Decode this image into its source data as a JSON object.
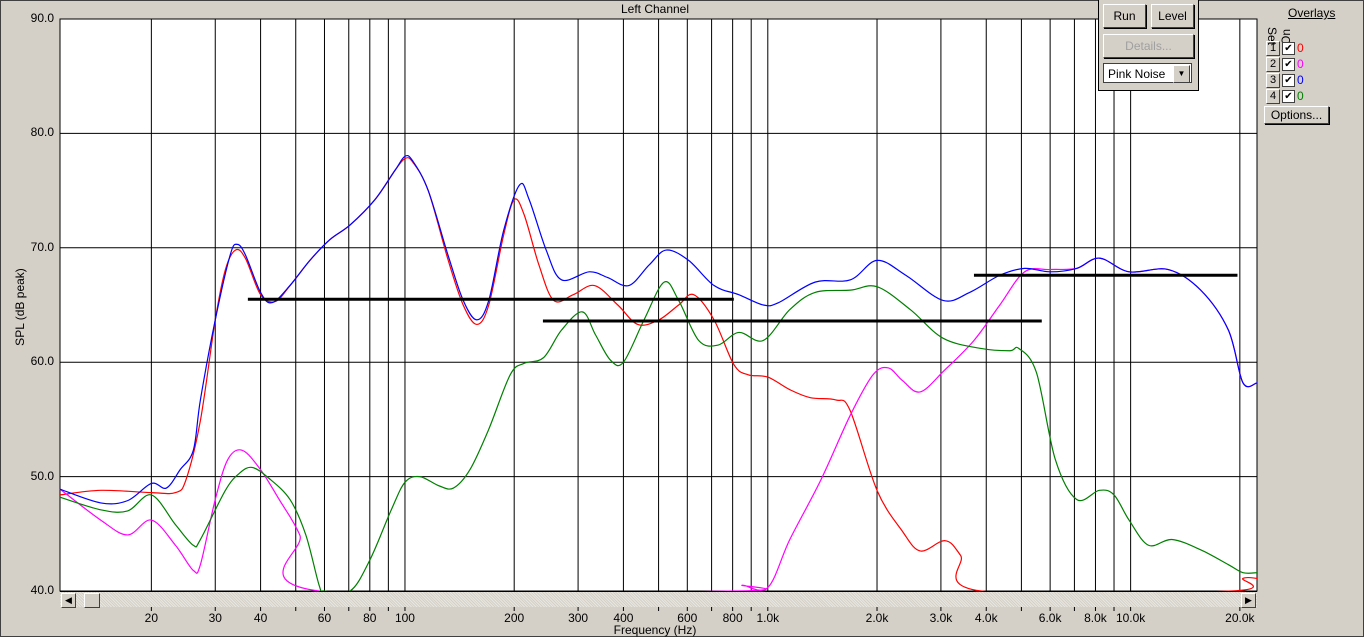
{
  "chart_data": {
    "type": "line",
    "title": "Left Channel",
    "xlabel": "Frequency (Hz)",
    "ylabel": "SPL (dB peak)",
    "xscale": "log",
    "xlim": [
      11.2,
      22300
    ],
    "ylim": [
      40,
      90
    ],
    "grid": true,
    "x_ticks": [
      {
        "v": 20,
        "l": "20"
      },
      {
        "v": 30,
        "l": "30"
      },
      {
        "v": 40,
        "l": "40"
      },
      {
        "v": 60,
        "l": "60"
      },
      {
        "v": 80,
        "l": "80"
      },
      {
        "v": 100,
        "l": "100"
      },
      {
        "v": 200,
        "l": "200"
      },
      {
        "v": 300,
        "l": "300"
      },
      {
        "v": 400,
        "l": "400"
      },
      {
        "v": 600,
        "l": "600"
      },
      {
        "v": 800,
        "l": "800"
      },
      {
        "v": 1000,
        "l": "1.0k"
      },
      {
        "v": 2000,
        "l": "2.0k"
      },
      {
        "v": 3000,
        "l": "3.0k"
      },
      {
        "v": 4000,
        "l": "4.0k"
      },
      {
        "v": 6000,
        "l": "6.0k"
      },
      {
        "v": 8000,
        "l": "8.0k"
      },
      {
        "v": 10000,
        "l": "10.0k"
      },
      {
        "v": 20000,
        "l": "20.0k"
      }
    ],
    "x_grid": [
      20,
      30,
      40,
      50,
      60,
      70,
      80,
      90,
      100,
      200,
      300,
      400,
      500,
      600,
      700,
      800,
      900,
      1000,
      2000,
      3000,
      4000,
      5000,
      6000,
      7000,
      8000,
      9000,
      10000,
      20000
    ],
    "y_ticks": [
      {
        "v": 40,
        "l": "40.0"
      },
      {
        "v": 50,
        "l": "50.0"
      },
      {
        "v": 60,
        "l": "60.0"
      },
      {
        "v": 70,
        "l": "70.0"
      },
      {
        "v": 80,
        "l": "80.0"
      },
      {
        "v": 90,
        "l": "90.0"
      }
    ],
    "series": [
      {
        "color": "#ff0000",
        "points": [
          [
            11.2,
            48.4
          ],
          [
            14.5,
            48.8
          ],
          [
            20,
            48.6
          ],
          [
            23.3,
            48.6
          ],
          [
            24.9,
            49.7
          ],
          [
            27.3,
            54.9
          ],
          [
            30,
            63.7
          ],
          [
            32,
            68.1
          ],
          [
            34.1,
            69.8
          ],
          [
            36.3,
            69.1
          ],
          [
            40,
            65.9
          ],
          [
            43.9,
            65.3
          ],
          [
            48.2,
            66.7
          ],
          [
            54.7,
            68.9
          ],
          [
            62,
            70.7
          ],
          [
            70.6,
            72
          ],
          [
            82.6,
            74.2
          ],
          [
            94,
            76.8
          ],
          [
            100,
            77.8
          ],
          [
            105,
            77.5
          ],
          [
            115.9,
            75
          ],
          [
            131.6,
            68.9
          ],
          [
            144.7,
            65
          ],
          [
            157.7,
            63.3
          ],
          [
            170.2,
            65
          ],
          [
            187,
            71.1
          ],
          [
            200,
            74.2
          ],
          [
            213,
            72.9
          ],
          [
            234,
            68.5
          ],
          [
            257,
            65.4
          ],
          [
            291,
            65.9
          ],
          [
            333,
            66.7
          ],
          [
            386,
            65
          ],
          [
            438,
            63.3
          ],
          [
            501,
            63.7
          ],
          [
            568,
            65
          ],
          [
            625,
            65.9
          ],
          [
            711,
            63.7
          ],
          [
            806,
            59.8
          ],
          [
            883,
            58.9
          ],
          [
            1000,
            58.7
          ],
          [
            1150,
            57.6
          ],
          [
            1310,
            56.9
          ],
          [
            1540,
            56.7
          ],
          [
            1685,
            55.8
          ],
          [
            2000,
            48.8
          ],
          [
            2340,
            45.3
          ],
          [
            2630,
            43.5
          ],
          [
            3080,
            44.4
          ],
          [
            3400,
            43.1
          ],
          [
            3870,
            40
          ],
          [
            19000,
            40
          ],
          [
            20400,
            41.1
          ],
          [
            22300,
            41.1
          ]
        ]
      },
      {
        "color": "#ff00ff",
        "points": [
          [
            11.2,
            48.9
          ],
          [
            14.5,
            46.2
          ],
          [
            17.2,
            44.9
          ],
          [
            20,
            46.2
          ],
          [
            23.3,
            44
          ],
          [
            26.1,
            41.8
          ],
          [
            27.3,
            42.3
          ],
          [
            30,
            48
          ],
          [
            32.5,
            51.5
          ],
          [
            35.6,
            52.3
          ],
          [
            40,
            50.6
          ],
          [
            45,
            48
          ],
          [
            51.3,
            44.9
          ],
          [
            58,
            40
          ],
          [
            806,
            40
          ],
          [
            850,
            40.5
          ],
          [
            1000,
            40.3
          ],
          [
            1150,
            44.5
          ],
          [
            1400,
            49.7
          ],
          [
            1690,
            55.4
          ],
          [
            1950,
            58.9
          ],
          [
            2150,
            59.5
          ],
          [
            2350,
            58.4
          ],
          [
            2630,
            57.4
          ],
          [
            3070,
            59.3
          ],
          [
            3700,
            61.9
          ],
          [
            4360,
            65
          ],
          [
            5100,
            67.9
          ],
          [
            6000,
            68.1
          ],
          [
            7100,
            68.2
          ],
          [
            8200,
            69.1
          ],
          [
            9900,
            67.9
          ],
          [
            12700,
            68.1
          ],
          [
            15600,
            66.3
          ],
          [
            18600,
            62.8
          ],
          [
            20400,
            58.2
          ],
          [
            22300,
            58.2
          ]
        ]
      },
      {
        "color": "#0000ff",
        "points": [
          [
            11.2,
            48.9
          ],
          [
            14.5,
            47.7
          ],
          [
            17.2,
            47.9
          ],
          [
            20,
            49.4
          ],
          [
            22,
            49
          ],
          [
            24,
            50.6
          ],
          [
            26.1,
            52.3
          ],
          [
            27.3,
            56.7
          ],
          [
            30,
            63.7
          ],
          [
            33,
            69.4
          ],
          [
            34.5,
            70.3
          ],
          [
            36.3,
            69.4
          ],
          [
            40,
            66.1
          ],
          [
            43,
            65.2
          ],
          [
            48.2,
            66.7
          ],
          [
            54.7,
            68.9
          ],
          [
            62,
            70.7
          ],
          [
            70.6,
            72
          ],
          [
            82.6,
            74.2
          ],
          [
            94,
            76.8
          ],
          [
            100,
            78
          ],
          [
            105,
            77.6
          ],
          [
            115.9,
            75
          ],
          [
            131.6,
            69.3
          ],
          [
            144.7,
            65.4
          ],
          [
            157.7,
            63.7
          ],
          [
            170.2,
            65.4
          ],
          [
            187,
            71.5
          ],
          [
            207,
            75.5
          ],
          [
            220,
            74.2
          ],
          [
            245,
            69.8
          ],
          [
            270,
            67.2
          ],
          [
            322,
            67.9
          ],
          [
            362,
            67.4
          ],
          [
            414,
            66.7
          ],
          [
            471,
            68.5
          ],
          [
            525,
            69.8
          ],
          [
            605,
            68.9
          ],
          [
            711,
            66.7
          ],
          [
            832,
            65.9
          ],
          [
            972,
            65
          ],
          [
            1070,
            65.2
          ],
          [
            1350,
            67
          ],
          [
            1690,
            67.2
          ],
          [
            2000,
            68.9
          ],
          [
            2400,
            67.6
          ],
          [
            3040,
            65.4
          ],
          [
            3600,
            66.1
          ],
          [
            4360,
            67.6
          ],
          [
            5100,
            68.2
          ],
          [
            6000,
            67.9
          ],
          [
            7100,
            68.2
          ],
          [
            8200,
            69.1
          ],
          [
            9900,
            67.9
          ],
          [
            12700,
            68.1
          ],
          [
            15600,
            66.3
          ],
          [
            18600,
            62.8
          ],
          [
            20400,
            58.2
          ],
          [
            22300,
            58.2
          ]
        ]
      },
      {
        "color": "#008000",
        "points": [
          [
            11.2,
            48.2
          ],
          [
            14.5,
            47.1
          ],
          [
            17.2,
            47
          ],
          [
            20,
            48.4
          ],
          [
            23.3,
            45.8
          ],
          [
            26.1,
            44
          ],
          [
            27.3,
            44.5
          ],
          [
            32,
            48.8
          ],
          [
            35,
            50.3
          ],
          [
            37.9,
            50.8
          ],
          [
            42,
            49.9
          ],
          [
            48.2,
            48
          ],
          [
            53.3,
            44.9
          ],
          [
            58,
            40.5
          ],
          [
            60,
            40
          ],
          [
            70.6,
            40
          ],
          [
            80,
            42.7
          ],
          [
            91.7,
            47.1
          ],
          [
            100,
            49.5
          ],
          [
            109.8,
            50
          ],
          [
            124,
            49.2
          ],
          [
            136,
            49
          ],
          [
            151,
            50.6
          ],
          [
            170,
            54.1
          ],
          [
            195,
            58.9
          ],
          [
            213,
            59.9
          ],
          [
            241,
            60.4
          ],
          [
            270,
            62.8
          ],
          [
            308,
            64.4
          ],
          [
            335,
            62.4
          ],
          [
            368,
            60.2
          ],
          [
            400,
            60
          ],
          [
            456,
            63.7
          ],
          [
            518,
            67
          ],
          [
            568,
            65.4
          ],
          [
            645,
            61.9
          ],
          [
            730,
            61.5
          ],
          [
            832,
            62.6
          ],
          [
            972,
            61.9
          ],
          [
            1150,
            64.6
          ],
          [
            1350,
            66.1
          ],
          [
            1690,
            66.3
          ],
          [
            2000,
            66.6
          ],
          [
            2470,
            64.6
          ],
          [
            3040,
            62.1
          ],
          [
            3870,
            61.2
          ],
          [
            4640,
            61
          ],
          [
            4920,
            61.2
          ],
          [
            5500,
            59.1
          ],
          [
            6200,
            51.5
          ],
          [
            7100,
            48
          ],
          [
            8200,
            48.8
          ],
          [
            9000,
            48.4
          ],
          [
            9900,
            46.2
          ],
          [
            11200,
            44
          ],
          [
            13000,
            44.5
          ],
          [
            15600,
            43.6
          ],
          [
            18600,
            42.3
          ],
          [
            20400,
            41.6
          ],
          [
            22300,
            41.6
          ]
        ]
      }
    ],
    "reference_lines": [
      {
        "x": [
          36.9,
          806
        ],
        "y": 65.5,
        "color": "#000000"
      },
      {
        "x": [
          240,
          5690
        ],
        "y": 63.6,
        "color": "#000000"
      },
      {
        "x": [
          3700,
          19700
        ],
        "y": 67.6,
        "color": "#000000"
      }
    ]
  },
  "controls": {
    "run": "Run",
    "level": "Level",
    "details": "Details...",
    "signal": "Pink Noise"
  },
  "overlays": {
    "title": "Overlays",
    "set_label": "Set",
    "on_label": "On",
    "options": "Options...",
    "rows": [
      {
        "set": "1",
        "checked": true,
        "value": "0",
        "color": "#ff0000"
      },
      {
        "set": "2",
        "checked": true,
        "value": "0",
        "color": "#ff00ff"
      },
      {
        "set": "3",
        "checked": true,
        "value": "0",
        "color": "#0000ff"
      },
      {
        "set": "4",
        "checked": true,
        "value": "0",
        "color": "#008000"
      }
    ]
  }
}
